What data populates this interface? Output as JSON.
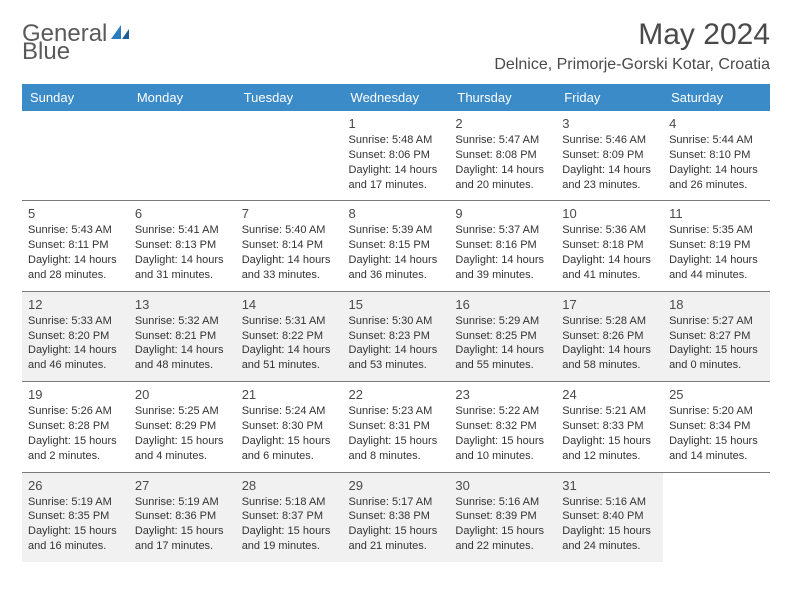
{
  "logo": {
    "line1": "General",
    "line2": "Blue"
  },
  "title": "May 2024",
  "location": "Delnice, Primorje-Gorski Kotar, Croatia",
  "colors": {
    "header_bg": "#3b8bc9",
    "header_text": "#ffffff",
    "text": "#333333",
    "shaded_bg": "#f1f1f1",
    "rule": "#7a7a7a",
    "logo_gray": "#5a5a5a",
    "logo_blue": "#2a7bbf"
  },
  "weekdays": [
    "Sunday",
    "Monday",
    "Tuesday",
    "Wednesday",
    "Thursday",
    "Friday",
    "Saturday"
  ],
  "weeks": [
    [
      null,
      null,
      null,
      {
        "n": "1",
        "sr": "5:48 AM",
        "ss": "8:06 PM",
        "dl": "14 hours and 17 minutes",
        "sh": false
      },
      {
        "n": "2",
        "sr": "5:47 AM",
        "ss": "8:08 PM",
        "dl": "14 hours and 20 minutes",
        "sh": false
      },
      {
        "n": "3",
        "sr": "5:46 AM",
        "ss": "8:09 PM",
        "dl": "14 hours and 23 minutes",
        "sh": false
      },
      {
        "n": "4",
        "sr": "5:44 AM",
        "ss": "8:10 PM",
        "dl": "14 hours and 26 minutes",
        "sh": false
      }
    ],
    [
      {
        "n": "5",
        "sr": "5:43 AM",
        "ss": "8:11 PM",
        "dl": "14 hours and 28 minutes",
        "sh": false
      },
      {
        "n": "6",
        "sr": "5:41 AM",
        "ss": "8:13 PM",
        "dl": "14 hours and 31 minutes",
        "sh": false
      },
      {
        "n": "7",
        "sr": "5:40 AM",
        "ss": "8:14 PM",
        "dl": "14 hours and 33 minutes",
        "sh": false
      },
      {
        "n": "8",
        "sr": "5:39 AM",
        "ss": "8:15 PM",
        "dl": "14 hours and 36 minutes",
        "sh": false
      },
      {
        "n": "9",
        "sr": "5:37 AM",
        "ss": "8:16 PM",
        "dl": "14 hours and 39 minutes",
        "sh": false
      },
      {
        "n": "10",
        "sr": "5:36 AM",
        "ss": "8:18 PM",
        "dl": "14 hours and 41 minutes",
        "sh": false
      },
      {
        "n": "11",
        "sr": "5:35 AM",
        "ss": "8:19 PM",
        "dl": "14 hours and 44 minutes",
        "sh": false
      }
    ],
    [
      {
        "n": "12",
        "sr": "5:33 AM",
        "ss": "8:20 PM",
        "dl": "14 hours and 46 minutes",
        "sh": true
      },
      {
        "n": "13",
        "sr": "5:32 AM",
        "ss": "8:21 PM",
        "dl": "14 hours and 48 minutes",
        "sh": true
      },
      {
        "n": "14",
        "sr": "5:31 AM",
        "ss": "8:22 PM",
        "dl": "14 hours and 51 minutes",
        "sh": true
      },
      {
        "n": "15",
        "sr": "5:30 AM",
        "ss": "8:23 PM",
        "dl": "14 hours and 53 minutes",
        "sh": true
      },
      {
        "n": "16",
        "sr": "5:29 AM",
        "ss": "8:25 PM",
        "dl": "14 hours and 55 minutes",
        "sh": true
      },
      {
        "n": "17",
        "sr": "5:28 AM",
        "ss": "8:26 PM",
        "dl": "14 hours and 58 minutes",
        "sh": true
      },
      {
        "n": "18",
        "sr": "5:27 AM",
        "ss": "8:27 PM",
        "dl": "15 hours and 0 minutes",
        "sh": true
      }
    ],
    [
      {
        "n": "19",
        "sr": "5:26 AM",
        "ss": "8:28 PM",
        "dl": "15 hours and 2 minutes",
        "sh": false
      },
      {
        "n": "20",
        "sr": "5:25 AM",
        "ss": "8:29 PM",
        "dl": "15 hours and 4 minutes",
        "sh": false
      },
      {
        "n": "21",
        "sr": "5:24 AM",
        "ss": "8:30 PM",
        "dl": "15 hours and 6 minutes",
        "sh": false
      },
      {
        "n": "22",
        "sr": "5:23 AM",
        "ss": "8:31 PM",
        "dl": "15 hours and 8 minutes",
        "sh": false
      },
      {
        "n": "23",
        "sr": "5:22 AM",
        "ss": "8:32 PM",
        "dl": "15 hours and 10 minutes",
        "sh": false
      },
      {
        "n": "24",
        "sr": "5:21 AM",
        "ss": "8:33 PM",
        "dl": "15 hours and 12 minutes",
        "sh": false
      },
      {
        "n": "25",
        "sr": "5:20 AM",
        "ss": "8:34 PM",
        "dl": "15 hours and 14 minutes",
        "sh": false
      }
    ],
    [
      {
        "n": "26",
        "sr": "5:19 AM",
        "ss": "8:35 PM",
        "dl": "15 hours and 16 minutes",
        "sh": true
      },
      {
        "n": "27",
        "sr": "5:19 AM",
        "ss": "8:36 PM",
        "dl": "15 hours and 17 minutes",
        "sh": true
      },
      {
        "n": "28",
        "sr": "5:18 AM",
        "ss": "8:37 PM",
        "dl": "15 hours and 19 minutes",
        "sh": true
      },
      {
        "n": "29",
        "sr": "5:17 AM",
        "ss": "8:38 PM",
        "dl": "15 hours and 21 minutes",
        "sh": true
      },
      {
        "n": "30",
        "sr": "5:16 AM",
        "ss": "8:39 PM",
        "dl": "15 hours and 22 minutes",
        "sh": true
      },
      {
        "n": "31",
        "sr": "5:16 AM",
        "ss": "8:40 PM",
        "dl": "15 hours and 24 minutes",
        "sh": true
      },
      null
    ]
  ],
  "labels": {
    "sunrise": "Sunrise:",
    "sunset": "Sunset:",
    "daylight": "Daylight:"
  }
}
